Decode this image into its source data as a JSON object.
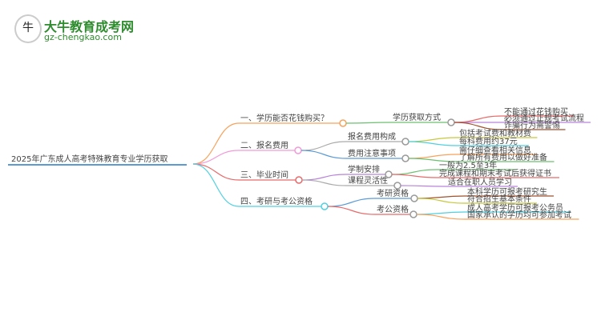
{
  "logo": {
    "name": "大牛教育成考网",
    "url": "gz-chengkao.com"
  },
  "root": "2025年广东成人高考特殊教育专业学历获取",
  "branches": [
    {
      "label": "一、学历能否花钱购买？",
      "color": "#f7a35c",
      "children": [
        {
          "label": "学历获取方式",
          "color": "#6cc070",
          "leaves": [
            "不能通过花钱购买",
            "必须通过正规考试流程",
            "诈骗行为需警惕"
          ]
        }
      ]
    },
    {
      "label": "二、报名费用",
      "color": "#f29ad8",
      "children": [
        {
          "label": "报名费用构成",
          "color": "#aaaaaa",
          "leaves": [
            "包括考试费和教材费",
            "每科费用约37元"
          ]
        },
        {
          "label": "费用注意事项",
          "color": "#5b9bd5",
          "leaves": [
            "需仔细查看相关信息",
            "了解所有费用以做好准备"
          ]
        }
      ]
    },
    {
      "label": "三、毕业时间",
      "color": "#e86a6a",
      "children": [
        {
          "label": "学制安排",
          "color": "#b784d9",
          "leaves": [
            "一般为2.5至3年",
            "完成课程和期末考试后获得证书"
          ]
        },
        {
          "label": "课程灵活性",
          "color": "#aaaaaa",
          "leaves": [
            "适合在职人员学习"
          ]
        }
      ]
    },
    {
      "label": "四、考研与考公资格",
      "color": "#4fd0e0",
      "children": [
        {
          "label": "考研资格",
          "color": "#5b9bd5",
          "leaves": [
            "本科学历可报考研究生",
            "符合招生基本条件"
          ]
        },
        {
          "label": "考公资格",
          "color": "#e86a6a",
          "leaves": [
            "成人高考学历可报考公务员",
            "国家承认的学历均可参加考试"
          ]
        }
      ]
    }
  ]
}
